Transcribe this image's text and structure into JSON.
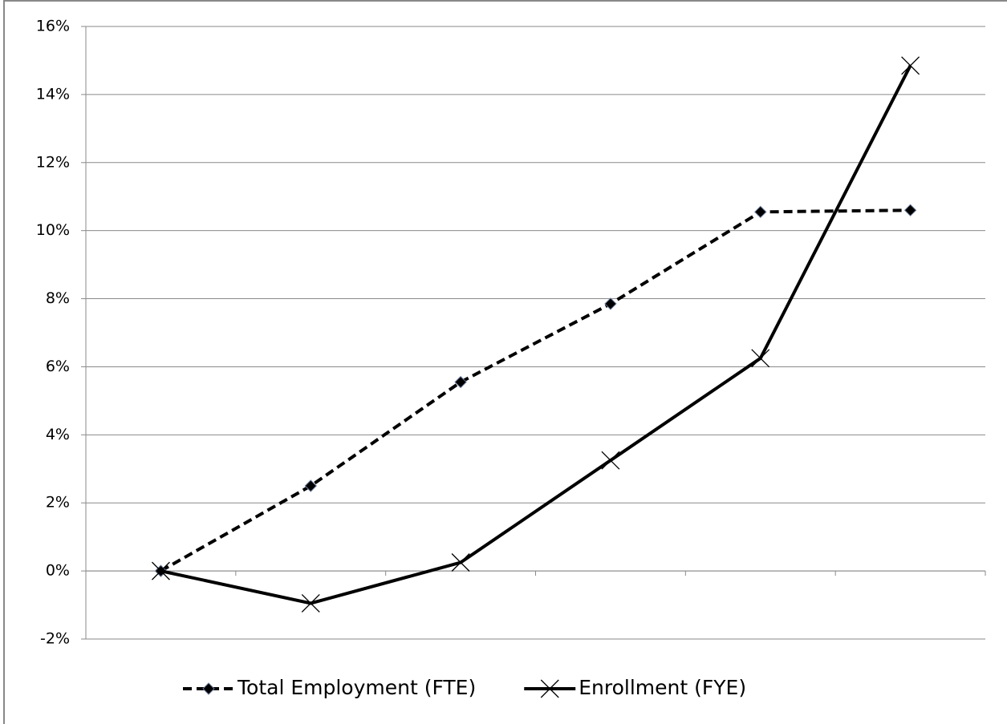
{
  "chart_data": {
    "type": "line",
    "categories": [
      null,
      null,
      null,
      null,
      null,
      null
    ],
    "series": [
      {
        "name": "Total Employment (FTE)",
        "color": "#000000",
        "line_style": "dashed",
        "marker": "diamond",
        "values": [
          0,
          2.5,
          5.55,
          7.85,
          10.55,
          10.6
        ]
      },
      {
        "name": "Enrollment (FYE)",
        "color": "#000000",
        "line_style": "solid",
        "marker": "x",
        "values": [
          0,
          -0.95,
          0.25,
          3.25,
          6.25,
          14.85
        ]
      }
    ],
    "ylim": [
      -2,
      16
    ],
    "yticks": [
      {
        "value": -2,
        "label": "-2%"
      },
      {
        "value": 0,
        "label": "0%"
      },
      {
        "value": 2,
        "label": "2%"
      },
      {
        "value": 4,
        "label": "4%"
      },
      {
        "value": 6,
        "label": "6%"
      },
      {
        "value": 8,
        "label": "8%"
      },
      {
        "value": 10,
        "label": "10%"
      },
      {
        "value": 12,
        "label": "12%"
      },
      {
        "value": 14,
        "label": "14%"
      },
      {
        "value": 16,
        "label": "16%"
      }
    ],
    "grid": true,
    "legend": "bottom"
  }
}
